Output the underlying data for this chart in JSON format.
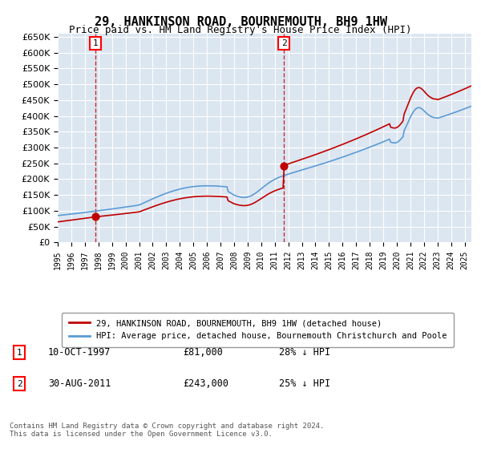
{
  "title": "29, HANKINSON ROAD, BOURNEMOUTH, BH9 1HW",
  "subtitle": "Price paid vs. HM Land Registry's House Price Index (HPI)",
  "x_start": 1995.0,
  "x_end": 2025.5,
  "y_min": 0,
  "y_max": 650000,
  "y_ticks": [
    0,
    50000,
    100000,
    150000,
    200000,
    250000,
    300000,
    350000,
    400000,
    450000,
    500000,
    550000,
    600000,
    650000
  ],
  "x_ticks": [
    1995,
    1996,
    1997,
    1998,
    1999,
    2000,
    2001,
    2002,
    2003,
    2004,
    2005,
    2006,
    2007,
    2008,
    2009,
    2010,
    2011,
    2012,
    2013,
    2014,
    2015,
    2016,
    2017,
    2018,
    2019,
    2020,
    2021,
    2022,
    2023,
    2024,
    2025
  ],
  "bg_color": "#dce6f1",
  "plot_bg": "#dce6f1",
  "hpi_color": "#5b9bd5",
  "price_color": "#c00000",
  "sale1_x": 1997.78,
  "sale1_y": 81000,
  "sale1_label": "1",
  "sale1_date": "10-OCT-1997",
  "sale1_price": "£81,000",
  "sale1_hpi": "28% ↓ HPI",
  "sale2_x": 2011.67,
  "sale2_y": 243000,
  "sale2_label": "2",
  "sale2_date": "30-AUG-2011",
  "sale2_price": "£243,000",
  "sale2_hpi": "25% ↓ HPI",
  "legend_red_label": "29, HANKINSON ROAD, BOURNEMOUTH, BH9 1HW (detached house)",
  "legend_blue_label": "HPI: Average price, detached house, Bournemouth Christchurch and Poole",
  "footnote": "Contains HM Land Registry data © Crown copyright and database right 2024.\nThis data is licensed under the Open Government Licence v3.0."
}
